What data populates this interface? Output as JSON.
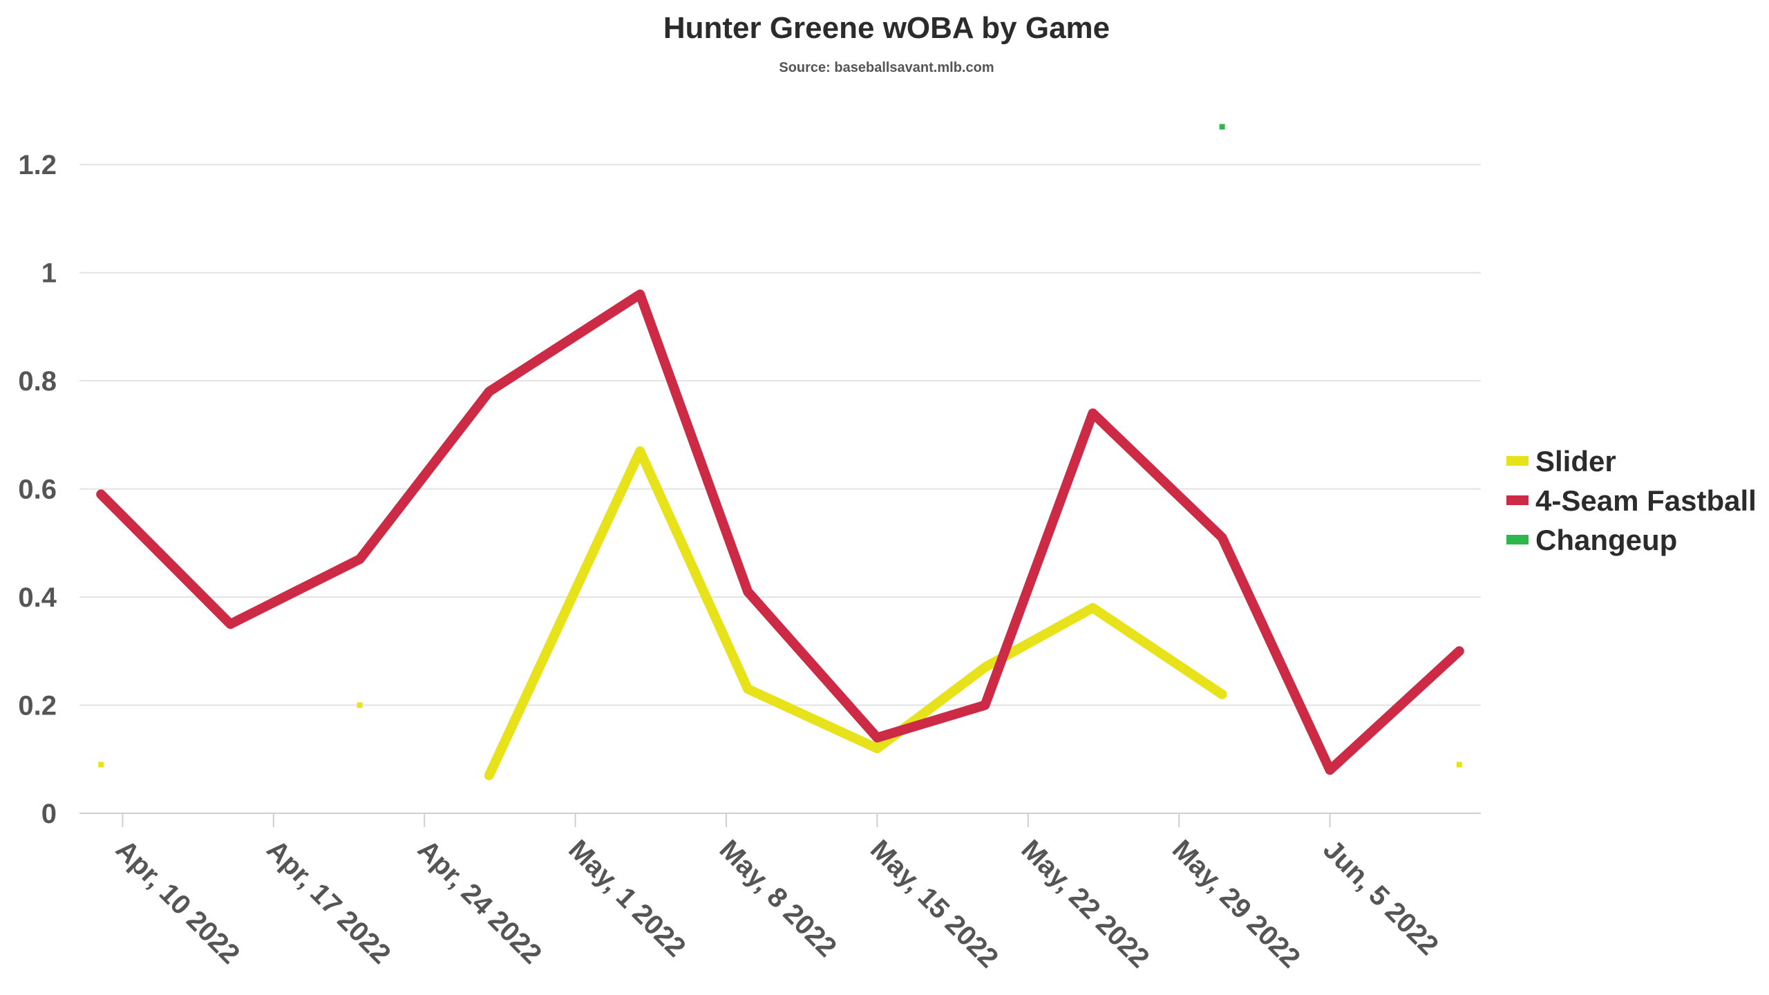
{
  "chart_data": {
    "type": "line",
    "title": "Hunter Greene wOBA by Game",
    "subtitle": "Source: baseballsavant.mlb.com",
    "xlabel": "",
    "ylabel": "",
    "xlim": [
      "2022-04-08",
      "2022-06-12"
    ],
    "ylim": [
      0,
      1.3
    ],
    "yticks": [
      {
        "value": 0,
        "label": "0"
      },
      {
        "value": 0.2,
        "label": "0.2"
      },
      {
        "value": 0.4,
        "label": "0.4"
      },
      {
        "value": 0.6,
        "label": "0.6"
      },
      {
        "value": 0.8,
        "label": "0.8"
      },
      {
        "value": 1,
        "label": "1"
      },
      {
        "value": 1.2,
        "label": "1.2"
      }
    ],
    "xticks": [
      {
        "date": "2022-04-10",
        "label": "Apr, 10 2022"
      },
      {
        "date": "2022-04-17",
        "label": "Apr, 17 2022"
      },
      {
        "date": "2022-04-24",
        "label": "Apr, 24 2022"
      },
      {
        "date": "2022-05-01",
        "label": "May, 1 2022"
      },
      {
        "date": "2022-05-08",
        "label": "May, 8 2022"
      },
      {
        "date": "2022-05-15",
        "label": "May, 15 2022"
      },
      {
        "date": "2022-05-22",
        "label": "May, 22 2022"
      },
      {
        "date": "2022-05-29",
        "label": "May, 29 2022"
      },
      {
        "date": "2022-06-05",
        "label": "Jun, 5 2022"
      }
    ],
    "grid": true,
    "legend_position": "right",
    "series": [
      {
        "name": "Slider",
        "color": "#e8e21a",
        "points": [
          {
            "date": "2022-04-09",
            "value": 0.09
          },
          {
            "date": "2022-04-21",
            "value": 0.2
          },
          null,
          {
            "date": "2022-04-27",
            "value": 0.07
          },
          {
            "date": "2022-05-04",
            "value": 0.67
          },
          {
            "date": "2022-05-09",
            "value": 0.23
          },
          {
            "date": "2022-05-15",
            "value": 0.12
          },
          {
            "date": "2022-05-20",
            "value": 0.27
          },
          {
            "date": "2022-05-25",
            "value": 0.38
          },
          {
            "date": "2022-05-31",
            "value": 0.22
          },
          null,
          {
            "date": "2022-06-11",
            "value": 0.09
          }
        ]
      },
      {
        "name": "4-Seam Fastball",
        "color": "#cc2a45",
        "points": [
          {
            "date": "2022-04-09",
            "value": 0.59
          },
          {
            "date": "2022-04-15",
            "value": 0.35
          },
          {
            "date": "2022-04-21",
            "value": 0.47
          },
          {
            "date": "2022-04-27",
            "value": 0.78
          },
          {
            "date": "2022-05-04",
            "value": 0.96
          },
          {
            "date": "2022-05-09",
            "value": 0.41
          },
          {
            "date": "2022-05-15",
            "value": 0.14
          },
          {
            "date": "2022-05-20",
            "value": 0.2
          },
          {
            "date": "2022-05-25",
            "value": 0.74
          },
          {
            "date": "2022-05-31",
            "value": 0.51
          },
          {
            "date": "2022-06-05",
            "value": 0.08
          },
          {
            "date": "2022-06-11",
            "value": 0.3
          }
        ]
      },
      {
        "name": "Changeup",
        "color": "#2db84b",
        "points": [
          {
            "date": "2022-05-31",
            "value": 1.27
          }
        ]
      }
    ]
  }
}
